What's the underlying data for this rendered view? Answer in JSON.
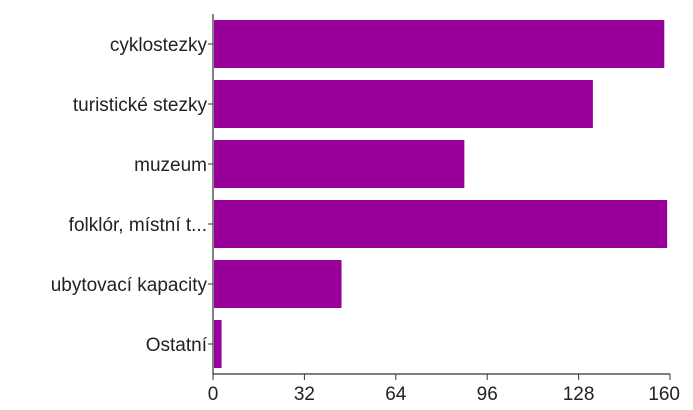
{
  "chart_data": {
    "type": "bar",
    "orientation": "horizontal",
    "categories": [
      "cyklostezky",
      "turistické stezky",
      "muzeum",
      "folklór, místní t...",
      "ubytovací kapacity",
      "Ostatní"
    ],
    "values": [
      158,
      133,
      88,
      159,
      45,
      3
    ],
    "xlim": [
      0,
      160
    ],
    "xticks": [
      "0",
      "32",
      "64",
      "96",
      "128",
      "160"
    ],
    "title": "",
    "xlabel": "",
    "ylabel": "",
    "grid": false,
    "bar_color": "#990099",
    "axis_color": "#333333"
  }
}
